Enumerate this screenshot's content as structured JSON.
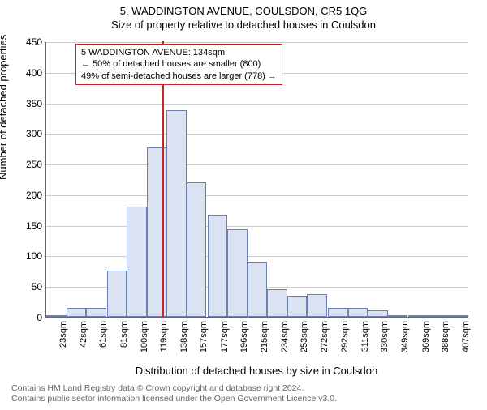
{
  "title": "5, WADDINGTON AVENUE, COULSDON, CR5 1QG",
  "subtitle": "Size of property relative to detached houses in Coulsdon",
  "chart": {
    "type": "histogram",
    "ylabel": "Number of detached properties",
    "xlabel": "Distribution of detached houses by size in Coulsdon",
    "ylim": [
      0,
      450
    ],
    "ytick_step": 50,
    "yticks": [
      0,
      50,
      100,
      150,
      200,
      250,
      300,
      350,
      400,
      450
    ],
    "xticks": [
      "23sqm",
      "42sqm",
      "61sqm",
      "81sqm",
      "100sqm",
      "119sqm",
      "138sqm",
      "157sqm",
      "177sqm",
      "196sqm",
      "215sqm",
      "234sqm",
      "253sqm",
      "272sqm",
      "292sqm",
      "311sqm",
      "330sqm",
      "349sqm",
      "369sqm",
      "388sqm",
      "407sqm"
    ],
    "bar_color": "#dbe3f2",
    "bar_border_color": "#6b7fb3",
    "grid_color": "#cccccc",
    "background_color": "#ffffff",
    "marker_color": "#cc2222",
    "bars": [
      {
        "x": 23,
        "y": 1
      },
      {
        "x": 42,
        "y": 15
      },
      {
        "x": 61,
        "y": 15
      },
      {
        "x": 81,
        "y": 75
      },
      {
        "x": 100,
        "y": 180
      },
      {
        "x": 119,
        "y": 277
      },
      {
        "x": 138,
        "y": 338
      },
      {
        "x": 157,
        "y": 220
      },
      {
        "x": 177,
        "y": 167
      },
      {
        "x": 196,
        "y": 143
      },
      {
        "x": 215,
        "y": 90
      },
      {
        "x": 234,
        "y": 45
      },
      {
        "x": 253,
        "y": 35
      },
      {
        "x": 272,
        "y": 37
      },
      {
        "x": 292,
        "y": 15
      },
      {
        "x": 311,
        "y": 15
      },
      {
        "x": 330,
        "y": 10
      },
      {
        "x": 349,
        "y": 2
      },
      {
        "x": 369,
        "y": 2
      },
      {
        "x": 388,
        "y": 3
      },
      {
        "x": 407,
        "y": 2
      }
    ],
    "bar_width_units": 19,
    "x_range": [
      23,
      426
    ],
    "marker_x": 134,
    "annotation": {
      "line1": "5 WADDINGTON AVENUE: 134sqm",
      "line2": "← 50% of detached houses are smaller (800)",
      "line3": "49% of semi-detached houses are larger (778) →"
    }
  },
  "footer": {
    "line1": "Contains HM Land Registry data © Crown copyright and database right 2024.",
    "line2": "Contains public sector information licensed under the Open Government Licence v3.0."
  }
}
